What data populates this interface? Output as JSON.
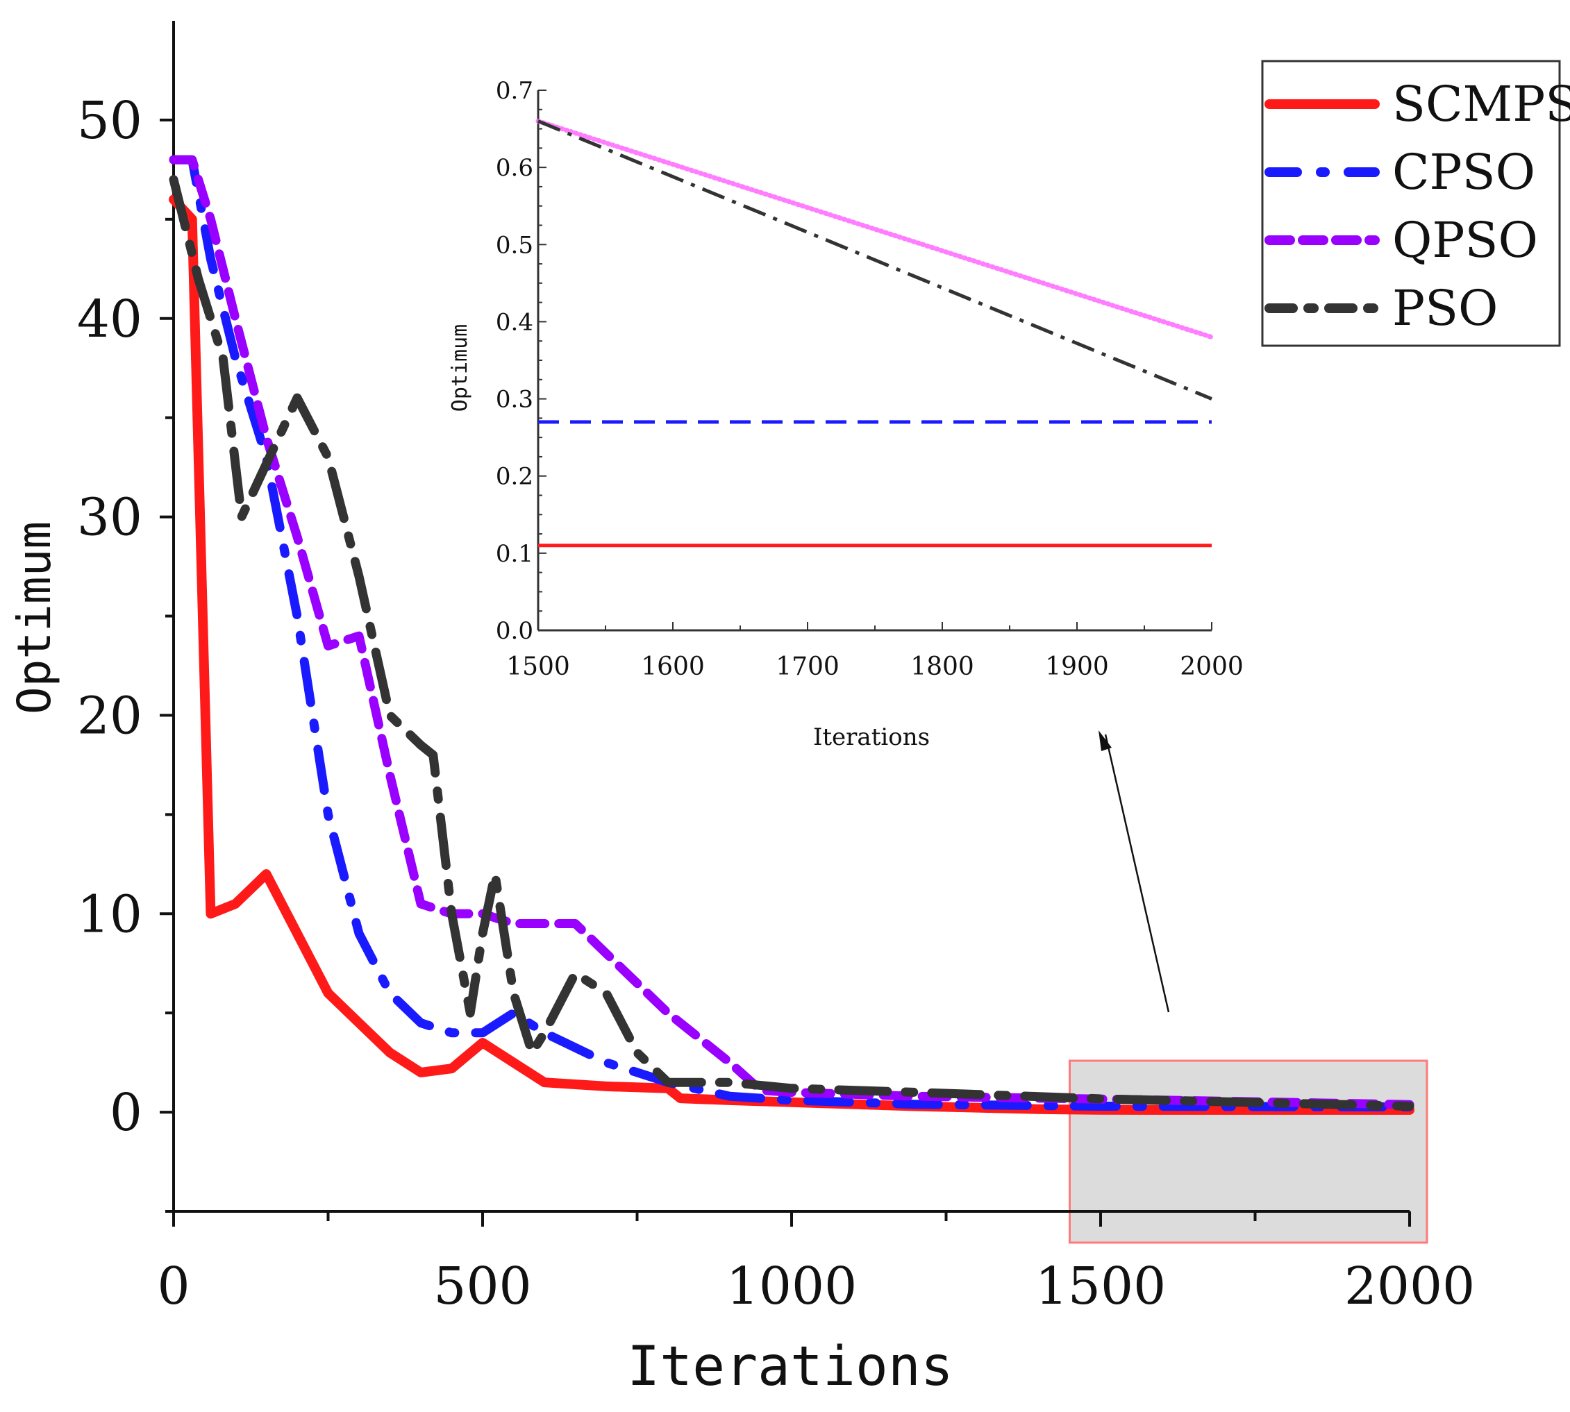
{
  "chart_data": [
    {
      "id": "main",
      "type": "line",
      "title": "",
      "xlabel": "Iterations",
      "ylabel": "Optimum",
      "xlim": [
        0,
        2000
      ],
      "ylim": [
        -5,
        55
      ],
      "xticks": [
        0,
        500,
        1000,
        1500,
        2000
      ],
      "xtick_labels": [
        "0",
        "500",
        "1000",
        "1500",
        "2000"
      ],
      "yticks": [
        0,
        10,
        20,
        30,
        40,
        50
      ],
      "ytick_labels": [
        "0",
        "10",
        "20",
        "30",
        "40",
        "50"
      ],
      "grid": false,
      "legend": "top-right",
      "zoom_region": {
        "x": [
          1450,
          2000
        ],
        "y": [
          -5,
          2.5
        ]
      },
      "series": [
        {
          "name": "SCMPSO",
          "color": "#ff1a1a",
          "dash": "solid",
          "x": [
            0,
            30,
            60,
            100,
            150,
            200,
            250,
            300,
            350,
            400,
            450,
            500,
            550,
            600,
            700,
            800,
            820,
            900,
            1000,
            1200,
            1400,
            1500,
            1600,
            1800,
            2000
          ],
          "y": [
            46,
            45,
            10,
            10.5,
            12,
            9,
            6,
            4.5,
            3,
            2,
            2.2,
            3.5,
            2.5,
            1.5,
            1.3,
            1.2,
            0.7,
            0.6,
            0.5,
            0.3,
            0.15,
            0.12,
            0.11,
            0.11,
            0.11
          ]
        },
        {
          "name": "CPSO",
          "color": "#1a1aff",
          "dash": "dash-dot",
          "x": [
            0,
            30,
            60,
            100,
            150,
            200,
            250,
            300,
            350,
            400,
            450,
            500,
            550,
            600,
            700,
            800,
            900,
            1000,
            1200,
            1500,
            2000
          ],
          "y": [
            48,
            48,
            43,
            38,
            33,
            25,
            15,
            9,
            6,
            4.5,
            4,
            4,
            5,
            4,
            2.5,
            1.5,
            0.8,
            0.6,
            0.4,
            0.3,
            0.27
          ]
        },
        {
          "name": "QPSO",
          "color": "#9900ff",
          "dash": "dash",
          "x": [
            0,
            30,
            60,
            100,
            150,
            200,
            250,
            300,
            350,
            400,
            450,
            500,
            550,
            600,
            650,
            700,
            800,
            900,
            950,
            1000,
            1200,
            1500,
            2000
          ],
          "y": [
            48,
            48,
            45,
            40,
            34,
            29,
            23.5,
            24,
            17,
            10.5,
            10,
            10,
            9.5,
            9.5,
            9.5,
            8,
            5,
            2.5,
            1.1,
            1,
            0.8,
            0.66,
            0.38
          ]
        },
        {
          "name": "PSO",
          "color": "#333333",
          "dash": "long-dash-dot",
          "x": [
            0,
            40,
            80,
            110,
            140,
            170,
            200,
            250,
            300,
            350,
            400,
            420,
            450,
            480,
            500,
            520,
            550,
            580,
            600,
            650,
            700,
            750,
            800,
            900,
            1000,
            1200,
            1500,
            2000
          ],
          "y": [
            47,
            42,
            38,
            30,
            32,
            34,
            36,
            33,
            27,
            20,
            18.5,
            18,
            10,
            5,
            9,
            12,
            6,
            3,
            4,
            7,
            6,
            3,
            1.5,
            1.5,
            1.2,
            1,
            0.67,
            0.3
          ]
        }
      ]
    },
    {
      "id": "inset",
      "type": "line",
      "title": "",
      "xlabel": "Iterations",
      "ylabel": "Optimum",
      "xlim": [
        1500,
        2000
      ],
      "ylim": [
        0,
        0.7
      ],
      "xticks": [
        1500,
        1600,
        1700,
        1800,
        1900,
        2000
      ],
      "xtick_labels": [
        "1500",
        "1600",
        "1700",
        "1800",
        "1900",
        "2000"
      ],
      "yticks": [
        0.0,
        0.1,
        0.2,
        0.3,
        0.4,
        0.5,
        0.6,
        0.7
      ],
      "ytick_labels": [
        "0.0",
        "0.1",
        "0.2",
        "0.3",
        "0.4",
        "0.5",
        "0.6",
        "0.7"
      ],
      "grid": false,
      "series": [
        {
          "name": "SCMPSO",
          "color": "#ff1a1a",
          "dash": "solid",
          "x": [
            1500,
            2000
          ],
          "y": [
            0.11,
            0.11
          ]
        },
        {
          "name": "CPSO",
          "color": "#1a1aff",
          "dash": "dash",
          "x": [
            1500,
            2000
          ],
          "y": [
            0.27,
            0.27
          ]
        },
        {
          "name": "QPSO",
          "color": "#ff66ff",
          "dash": "dotted",
          "x": [
            1500,
            2000
          ],
          "y": [
            0.66,
            0.38
          ]
        },
        {
          "name": "PSO",
          "color": "#333333",
          "dash": "dash-dot",
          "x": [
            1500,
            2000
          ],
          "y": [
            0.66,
            0.3
          ]
        }
      ]
    }
  ]
}
